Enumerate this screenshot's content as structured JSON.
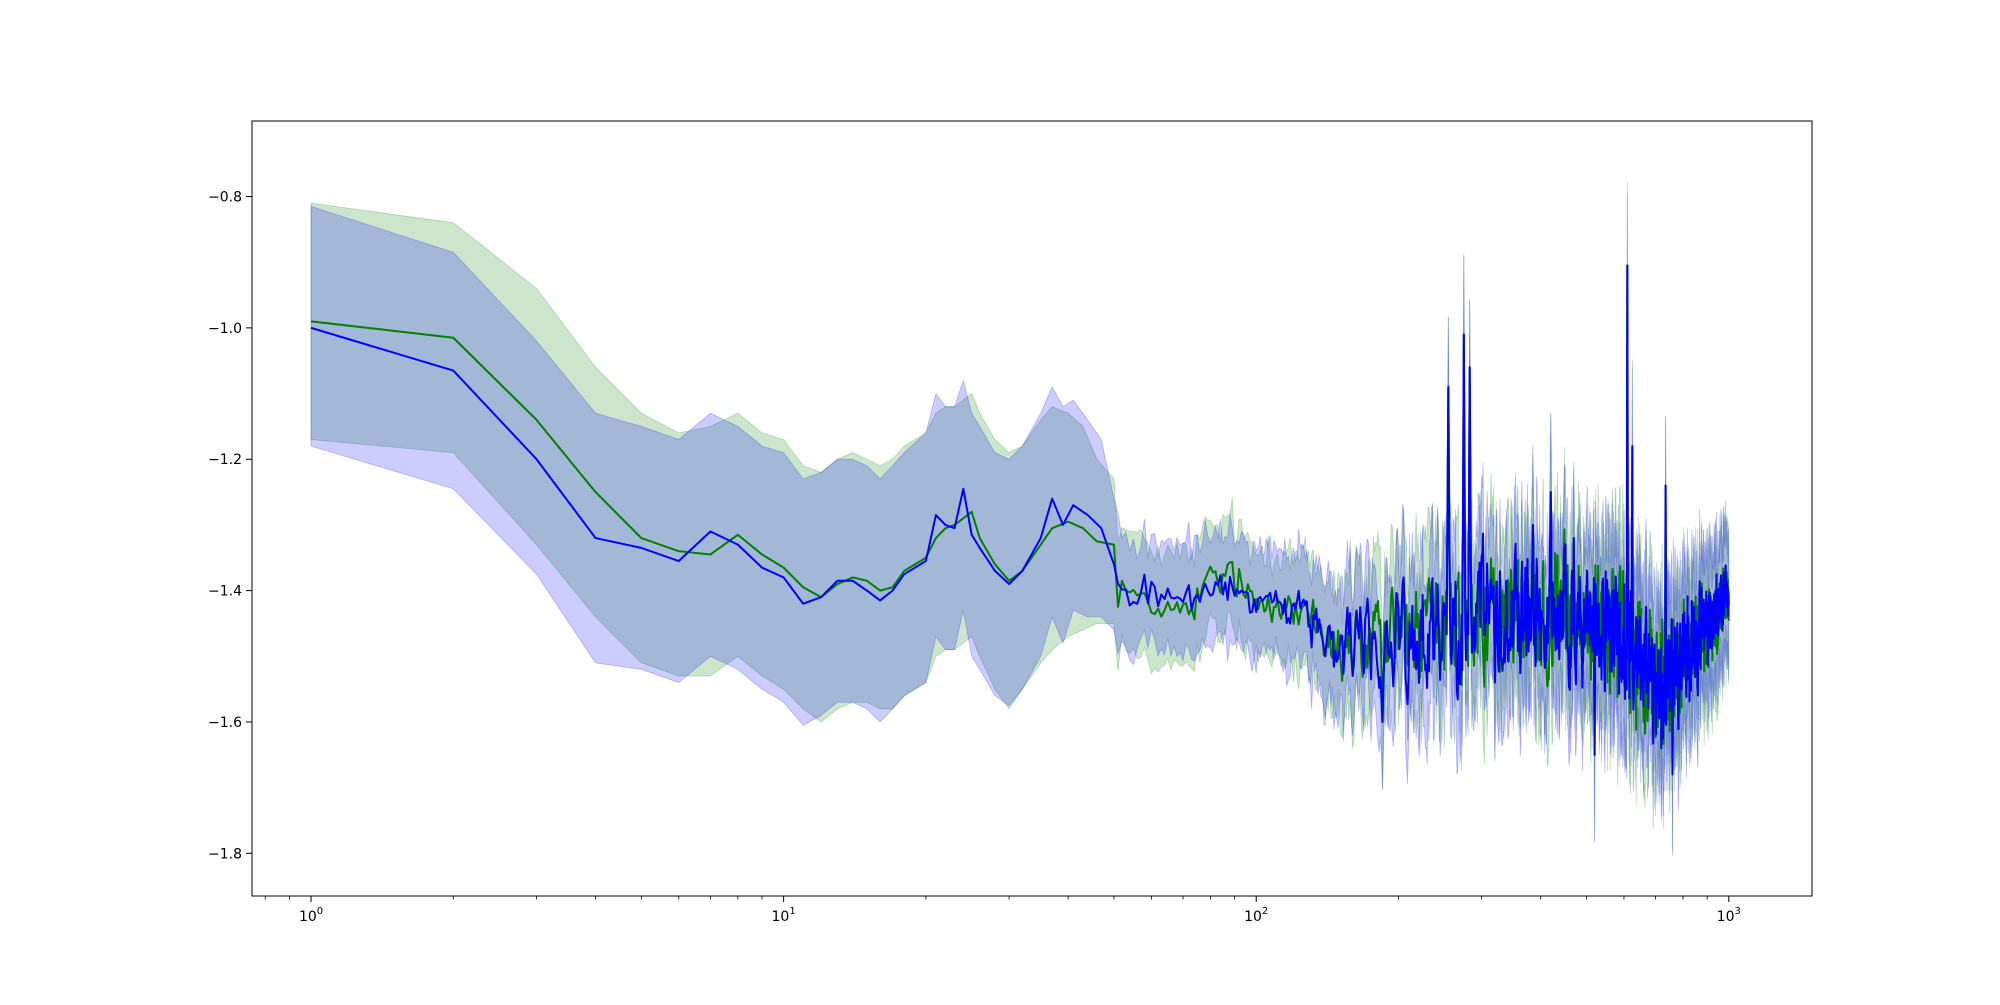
{
  "chart_data": {
    "type": "line",
    "title": "",
    "xlabel": "",
    "ylabel": "",
    "xscale": "log",
    "xlim": [
      0.75,
      1500
    ],
    "ylim": [
      -1.865,
      -0.685
    ],
    "grid": false,
    "legend": "none",
    "x_ticks": [
      {
        "value": 1,
        "base": "10",
        "exp": "0"
      },
      {
        "value": 10,
        "base": "10",
        "exp": "1"
      },
      {
        "value": 100,
        "base": "10",
        "exp": "2"
      },
      {
        "value": 1000,
        "base": "10",
        "exp": "3"
      }
    ],
    "y_ticks": [
      {
        "value": -0.8,
        "label": "−0.8"
      },
      {
        "value": -1.0,
        "label": "−1.0"
      },
      {
        "value": -1.2,
        "label": "−1.2"
      },
      {
        "value": -1.4,
        "label": "−1.4"
      },
      {
        "value": -1.6,
        "label": "−1.6"
      },
      {
        "value": -1.8,
        "label": "−1.8"
      }
    ],
    "series": [
      {
        "color": "#008000",
        "band_color": "#008000",
        "band_opacity": 0.2,
        "points": [
          [
            1,
            -0.99,
            -0.81,
            -1.17
          ],
          [
            2,
            -1.015,
            -0.84,
            -1.19
          ],
          [
            3,
            -1.14,
            -0.94,
            -1.33
          ],
          [
            4,
            -1.25,
            -1.06,
            -1.44
          ],
          [
            5,
            -1.32,
            -1.13,
            -1.51
          ],
          [
            6,
            -1.34,
            -1.16,
            -1.53
          ],
          [
            7,
            -1.345,
            -1.15,
            -1.53
          ],
          [
            8,
            -1.315,
            -1.13,
            -1.5
          ],
          [
            9,
            -1.345,
            -1.16,
            -1.53
          ],
          [
            10,
            -1.365,
            -1.17,
            -1.55
          ],
          [
            11,
            -1.395,
            -1.21,
            -1.58
          ],
          [
            12,
            -1.41,
            -1.22,
            -1.6
          ],
          [
            13,
            -1.39,
            -1.2,
            -1.58
          ],
          [
            14,
            -1.38,
            -1.19,
            -1.57
          ],
          [
            15,
            -1.385,
            -1.2,
            -1.57
          ],
          [
            16,
            -1.4,
            -1.21,
            -1.58
          ],
          [
            17,
            -1.395,
            -1.2,
            -1.58
          ],
          [
            18,
            -1.37,
            -1.18,
            -1.56
          ],
          [
            20,
            -1.35,
            -1.16,
            -1.54
          ],
          [
            21,
            -1.32,
            -1.13,
            -1.5
          ],
          [
            22,
            -1.305,
            -1.12,
            -1.49
          ],
          [
            23,
            -1.3,
            -1.12,
            -1.49
          ],
          [
            24,
            -1.29,
            -1.11,
            -1.48
          ],
          [
            25,
            -1.28,
            -1.1,
            -1.47
          ],
          [
            26,
            -1.32,
            -1.13,
            -1.5
          ],
          [
            28,
            -1.36,
            -1.17,
            -1.55
          ],
          [
            30,
            -1.385,
            -1.19,
            -1.58
          ],
          [
            32,
            -1.37,
            -1.18,
            -1.55
          ],
          [
            35,
            -1.33,
            -1.14,
            -1.51
          ],
          [
            37,
            -1.305,
            -1.12,
            -1.49
          ],
          [
            40,
            -1.295,
            -1.13,
            -1.47
          ],
          [
            43,
            -1.305,
            -1.15,
            -1.46
          ],
          [
            46,
            -1.325,
            -1.2,
            -1.45
          ],
          [
            50,
            -1.33,
            -1.23,
            -1.45
          ]
        ]
      },
      {
        "color": "#0000ff",
        "band_color": "#0000ff",
        "band_opacity": 0.2,
        "points": [
          [
            1,
            -1.0,
            -0.815,
            -1.18
          ],
          [
            2,
            -1.065,
            -0.885,
            -1.245
          ],
          [
            3,
            -1.2,
            -1.02,
            -1.375
          ],
          [
            4,
            -1.32,
            -1.13,
            -1.51
          ],
          [
            5,
            -1.335,
            -1.15,
            -1.52
          ],
          [
            6,
            -1.355,
            -1.17,
            -1.54
          ],
          [
            7,
            -1.31,
            -1.13,
            -1.5
          ],
          [
            8,
            -1.33,
            -1.15,
            -1.52
          ],
          [
            9,
            -1.365,
            -1.18,
            -1.55
          ],
          [
            10,
            -1.38,
            -1.19,
            -1.57
          ],
          [
            11,
            -1.42,
            -1.23,
            -1.605
          ],
          [
            12,
            -1.41,
            -1.22,
            -1.59
          ],
          [
            13,
            -1.385,
            -1.2,
            -1.57
          ],
          [
            14,
            -1.385,
            -1.2,
            -1.57
          ],
          [
            15,
            -1.4,
            -1.21,
            -1.58
          ],
          [
            16,
            -1.415,
            -1.23,
            -1.6
          ],
          [
            17,
            -1.4,
            -1.21,
            -1.58
          ],
          [
            18,
            -1.375,
            -1.19,
            -1.56
          ],
          [
            20,
            -1.355,
            -1.16,
            -1.54
          ],
          [
            21,
            -1.285,
            -1.1,
            -1.47
          ],
          [
            22,
            -1.3,
            -1.12,
            -1.49
          ],
          [
            23,
            -1.305,
            -1.12,
            -1.49
          ],
          [
            24,
            -1.245,
            -1.08,
            -1.43
          ],
          [
            25,
            -1.315,
            -1.13,
            -1.5
          ],
          [
            26,
            -1.335,
            -1.15,
            -1.52
          ],
          [
            28,
            -1.37,
            -1.19,
            -1.56
          ],
          [
            30,
            -1.39,
            -1.2,
            -1.575
          ],
          [
            32,
            -1.37,
            -1.18,
            -1.55
          ],
          [
            35,
            -1.32,
            -1.13,
            -1.5
          ],
          [
            37,
            -1.26,
            -1.09,
            -1.44
          ],
          [
            39,
            -1.3,
            -1.12,
            -1.48
          ],
          [
            41,
            -1.27,
            -1.11,
            -1.43
          ],
          [
            44,
            -1.285,
            -1.14,
            -1.44
          ],
          [
            47,
            -1.305,
            -1.17,
            -1.44
          ],
          [
            50,
            -1.36,
            -1.26,
            -1.46
          ]
        ]
      }
    ],
    "noisy_region": {
      "x_start": 50,
      "x_end": 1000,
      "anchors": [
        [
          50,
          -1.36,
          0.1
        ],
        [
          55,
          -1.42,
          0.05
        ],
        [
          60,
          -1.405,
          0.05
        ],
        [
          70,
          -1.43,
          0.05
        ],
        [
          80,
          -1.39,
          0.05
        ],
        [
          90,
          -1.385,
          0.05
        ],
        [
          100,
          -1.41,
          0.04
        ],
        [
          110,
          -1.42,
          0.04
        ],
        [
          130,
          -1.44,
          0.06
        ],
        [
          150,
          -1.49,
          0.1
        ],
        [
          170,
          -1.47,
          0.1
        ],
        [
          200,
          -1.47,
          0.12
        ],
        [
          250,
          -1.48,
          0.15
        ],
        [
          300,
          -1.43,
          0.14
        ],
        [
          400,
          -1.43,
          0.15
        ],
        [
          500,
          -1.44,
          0.15
        ],
        [
          600,
          -1.47,
          0.17
        ],
        [
          700,
          -1.55,
          0.15
        ],
        [
          800,
          -1.5,
          0.13
        ],
        [
          1000,
          -1.41,
          0.08
        ]
      ],
      "spikes": [
        [
          140,
          -1.5
        ],
        [
          160,
          -1.53
        ],
        [
          185,
          -1.6
        ],
        [
          205,
          -1.38
        ],
        [
          255,
          -1.09
        ],
        [
          275,
          -1.01
        ],
        [
          283,
          -1.06
        ],
        [
          320,
          -1.54
        ],
        [
          385,
          -1.3
        ],
        [
          420,
          -1.25
        ],
        [
          470,
          -1.32
        ],
        [
          520,
          -1.65
        ],
        [
          610,
          -0.905
        ],
        [
          625,
          -1.18
        ],
        [
          720,
          -1.64
        ],
        [
          735,
          -1.24
        ],
        [
          760,
          -1.68
        ],
        [
          860,
          -1.56
        ]
      ]
    }
  }
}
